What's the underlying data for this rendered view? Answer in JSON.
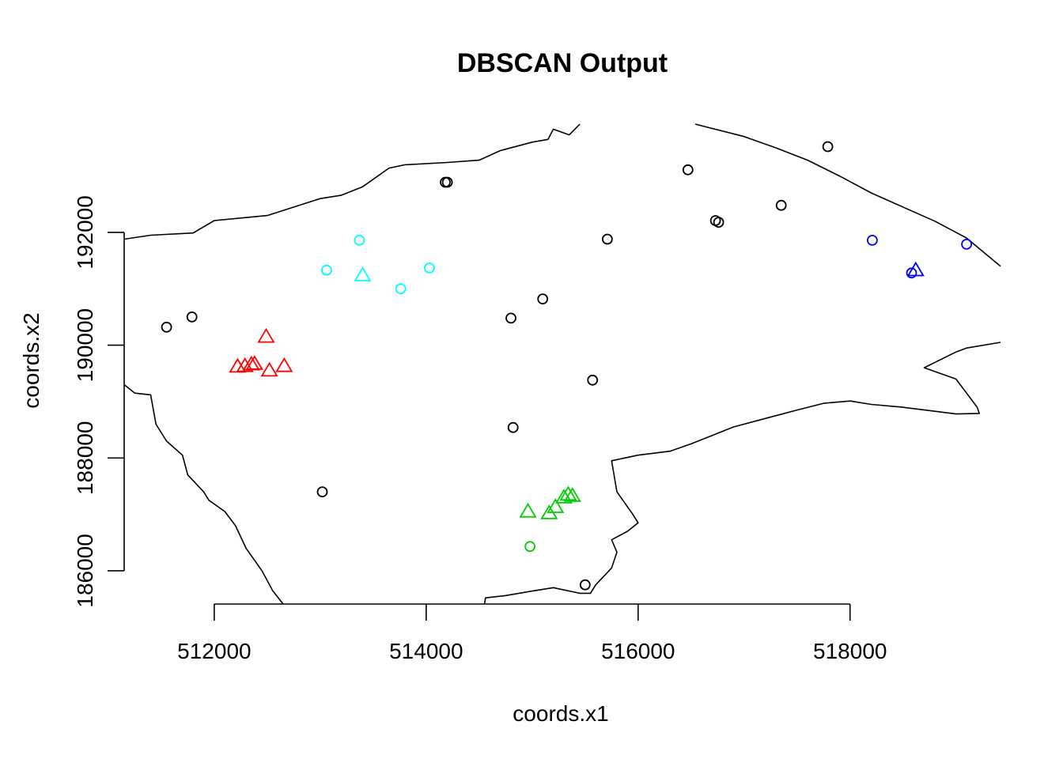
{
  "chart_data": {
    "type": "scatter",
    "title": "DBSCAN Output",
    "xlabel": "coords.x1",
    "ylabel": "coords.x2",
    "xlim": [
      511150,
      519420
    ],
    "ylim": [
      185410,
      193920
    ],
    "xticks": [
      512000,
      514000,
      516000,
      518000
    ],
    "yticks": [
      186000,
      188000,
      190000,
      192000
    ],
    "colors": {
      "noise": "#000000",
      "cluster1": "#ff0000",
      "cluster2": "#00cd00",
      "cluster3": "#00ffff",
      "cluster4": "#0000ff"
    },
    "points": [
      {
        "x": 511550,
        "y": 190320,
        "group": "noise",
        "shape": "circle"
      },
      {
        "x": 511790,
        "y": 190500,
        "group": "noise",
        "shape": "circle"
      },
      {
        "x": 513020,
        "y": 187400,
        "group": "noise",
        "shape": "circle"
      },
      {
        "x": 514180,
        "y": 192890,
        "group": "noise",
        "shape": "circle"
      },
      {
        "x": 514200,
        "y": 192890,
        "group": "noise",
        "shape": "circle"
      },
      {
        "x": 514800,
        "y": 190480,
        "group": "noise",
        "shape": "circle"
      },
      {
        "x": 514820,
        "y": 188540,
        "group": "noise",
        "shape": "circle"
      },
      {
        "x": 515100,
        "y": 190820,
        "group": "noise",
        "shape": "circle"
      },
      {
        "x": 515500,
        "y": 185750,
        "group": "noise",
        "shape": "circle"
      },
      {
        "x": 515570,
        "y": 189380,
        "group": "noise",
        "shape": "circle"
      },
      {
        "x": 515710,
        "y": 191880,
        "group": "noise",
        "shape": "circle"
      },
      {
        "x": 516470,
        "y": 193110,
        "group": "noise",
        "shape": "circle"
      },
      {
        "x": 516730,
        "y": 192210,
        "group": "noise",
        "shape": "circle"
      },
      {
        "x": 516760,
        "y": 192180,
        "group": "noise",
        "shape": "circle"
      },
      {
        "x": 517350,
        "y": 192480,
        "group": "noise",
        "shape": "circle"
      },
      {
        "x": 517790,
        "y": 193520,
        "group": "noise",
        "shape": "circle"
      },
      {
        "x": 512220,
        "y": 189610,
        "group": "cluster1",
        "shape": "triangle"
      },
      {
        "x": 512290,
        "y": 189620,
        "group": "cluster1",
        "shape": "triangle"
      },
      {
        "x": 512350,
        "y": 189650,
        "group": "cluster1",
        "shape": "triangle"
      },
      {
        "x": 512380,
        "y": 189660,
        "group": "cluster1",
        "shape": "triangle"
      },
      {
        "x": 512490,
        "y": 190140,
        "group": "cluster1",
        "shape": "triangle"
      },
      {
        "x": 512520,
        "y": 189540,
        "group": "cluster1",
        "shape": "triangle"
      },
      {
        "x": 512660,
        "y": 189620,
        "group": "cluster1",
        "shape": "triangle"
      },
      {
        "x": 514980,
        "y": 186430,
        "group": "cluster2",
        "shape": "circle"
      },
      {
        "x": 514960,
        "y": 187040,
        "group": "cluster2",
        "shape": "triangle"
      },
      {
        "x": 515160,
        "y": 187010,
        "group": "cluster2",
        "shape": "triangle"
      },
      {
        "x": 515220,
        "y": 187120,
        "group": "cluster2",
        "shape": "triangle"
      },
      {
        "x": 515300,
        "y": 187290,
        "group": "cluster2",
        "shape": "triangle"
      },
      {
        "x": 515340,
        "y": 187340,
        "group": "cluster2",
        "shape": "triangle"
      },
      {
        "x": 515380,
        "y": 187320,
        "group": "cluster2",
        "shape": "triangle"
      },
      {
        "x": 513060,
        "y": 191330,
        "group": "cluster3",
        "shape": "circle"
      },
      {
        "x": 513370,
        "y": 191860,
        "group": "cluster3",
        "shape": "circle"
      },
      {
        "x": 513760,
        "y": 191000,
        "group": "cluster3",
        "shape": "circle"
      },
      {
        "x": 514030,
        "y": 191370,
        "group": "cluster3",
        "shape": "circle"
      },
      {
        "x": 513400,
        "y": 191230,
        "group": "cluster3",
        "shape": "triangle"
      },
      {
        "x": 518210,
        "y": 191860,
        "group": "cluster4",
        "shape": "circle"
      },
      {
        "x": 518580,
        "y": 191280,
        "group": "cluster4",
        "shape": "circle"
      },
      {
        "x": 519100,
        "y": 191790,
        "group": "cluster4",
        "shape": "circle"
      },
      {
        "x": 518620,
        "y": 191320,
        "group": "cluster4",
        "shape": "triangle"
      }
    ],
    "boundary": [
      [
        [
          511150,
          191880
        ],
        [
          511400,
          191950
        ],
        [
          511800,
          191990
        ],
        [
          512000,
          192210
        ],
        [
          512500,
          192300
        ],
        [
          512800,
          192480
        ],
        [
          513000,
          192600
        ],
        [
          513200,
          192660
        ],
        [
          513400,
          192810
        ],
        [
          513650,
          193140
        ],
        [
          513800,
          193200
        ],
        [
          514200,
          193240
        ],
        [
          514500,
          193280
        ],
        [
          514700,
          193450
        ],
        [
          515000,
          193600
        ],
        [
          515150,
          193650
        ],
        [
          515200,
          193830
        ],
        [
          515350,
          193730
        ],
        [
          515450,
          193920
        ]
      ],
      [
        [
          516540,
          193920
        ],
        [
          517000,
          193700
        ],
        [
          517300,
          193500
        ],
        [
          517600,
          193280
        ],
        [
          517900,
          193000
        ],
        [
          518200,
          192700
        ],
        [
          518500,
          192450
        ],
        [
          518800,
          192200
        ],
        [
          519100,
          191900
        ],
        [
          519420,
          191400
        ]
      ],
      [
        [
          511150,
          189300
        ],
        [
          511250,
          189150
        ],
        [
          511400,
          189120
        ],
        [
          511450,
          188600
        ],
        [
          511550,
          188300
        ],
        [
          511700,
          188050
        ],
        [
          511750,
          187700
        ],
        [
          511900,
          187400
        ],
        [
          511950,
          187250
        ],
        [
          512100,
          187050
        ],
        [
          512200,
          186800
        ],
        [
          512300,
          186400
        ],
        [
          512450,
          186000
        ],
        [
          512550,
          185650
        ],
        [
          512650,
          185410
        ]
      ],
      [
        [
          514550,
          185410
        ],
        [
          514560,
          185520
        ],
        [
          514750,
          185560
        ],
        [
          515000,
          185640
        ],
        [
          515200,
          185700
        ],
        [
          515450,
          185600
        ],
        [
          515550,
          185600
        ],
        [
          515600,
          185750
        ],
        [
          515750,
          186050
        ],
        [
          515800,
          186330
        ],
        [
          515750,
          186550
        ],
        [
          515900,
          186700
        ],
        [
          516000,
          186850
        ],
        [
          515950,
          187000
        ],
        [
          515800,
          187400
        ],
        [
          515750,
          187950
        ],
        [
          516000,
          188050
        ],
        [
          516300,
          188120
        ],
        [
          516500,
          188250
        ],
        [
          516900,
          188550
        ],
        [
          517200,
          188700
        ],
        [
          517500,
          188850
        ],
        [
          517750,
          188970
        ],
        [
          518000,
          189010
        ],
        [
          518200,
          188950
        ],
        [
          518500,
          188900
        ],
        [
          518750,
          188840
        ],
        [
          519000,
          188780
        ],
        [
          519220,
          188790
        ],
        [
          519200,
          188900
        ],
        [
          519000,
          189400
        ],
        [
          518700,
          189600
        ],
        [
          519000,
          189880
        ],
        [
          519100,
          189950
        ],
        [
          519420,
          190050
        ]
      ]
    ]
  }
}
